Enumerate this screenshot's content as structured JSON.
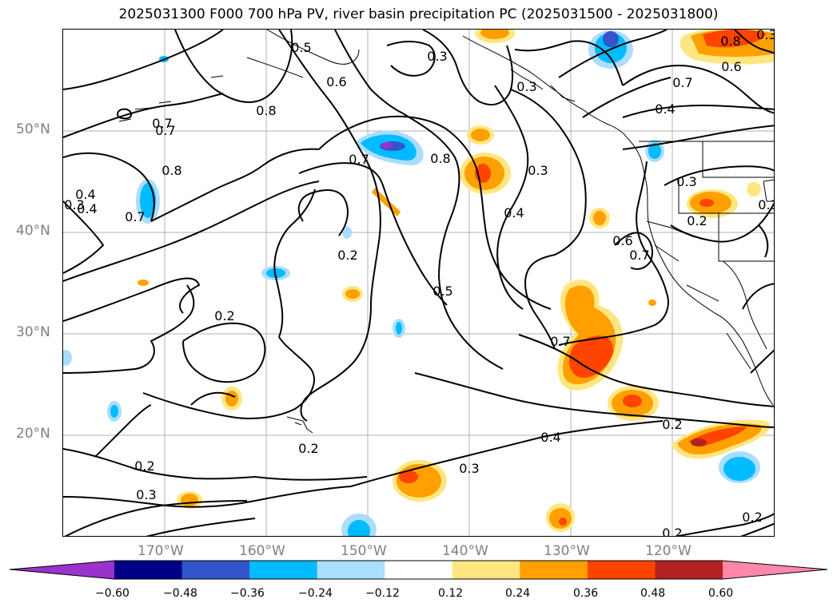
{
  "title": "2025031300 F000 700 hPa PV, river basin precipitation PC (2025031500 - 2025031800)",
  "latitude_labels": [
    "50°N",
    "40°N",
    "30°N",
    "20°N"
  ],
  "longitude_labels": [
    "170°W",
    "160°W",
    "150°W",
    "140°W",
    "130°W",
    "120°W"
  ],
  "contour_labels": [
    "0.3",
    "0.5",
    "0.6",
    "0.7",
    "0.8",
    "0.7",
    "0.8",
    "0.4",
    "0.3",
    "0.8",
    "0.3",
    "0.7",
    "0.6",
    "0.4",
    "0.7",
    "0.8",
    "0.3",
    "0.4",
    "0.2",
    "0.3",
    "0.2",
    "0.3",
    "0.6",
    "0.2",
    "0.5",
    "0.7",
    "0.2",
    "0.2",
    "0.4",
    "0.3",
    "0.2",
    "0.3",
    "0.2",
    "0.2",
    "0.4",
    "0.3",
    "0.7",
    "0.7"
  ],
  "colorbar": {
    "colors": [
      "#9933cc",
      "#000088",
      "#3355cc",
      "#00bbff",
      "#aaddff",
      "#ffffff",
      "#ffe680",
      "#ffa000",
      "#ff4400",
      "#b22222",
      "#ff88aa"
    ],
    "tick_labels": [
      "−0.60",
      "−0.48",
      "−0.36",
      "−0.24",
      "−0.12",
      "0.12",
      "0.24",
      "0.36",
      "0.48",
      "0.60"
    ]
  },
  "colors": {
    "gridline": "#b0b0b0",
    "axis_label": "#808080",
    "contour": "#000000"
  }
}
